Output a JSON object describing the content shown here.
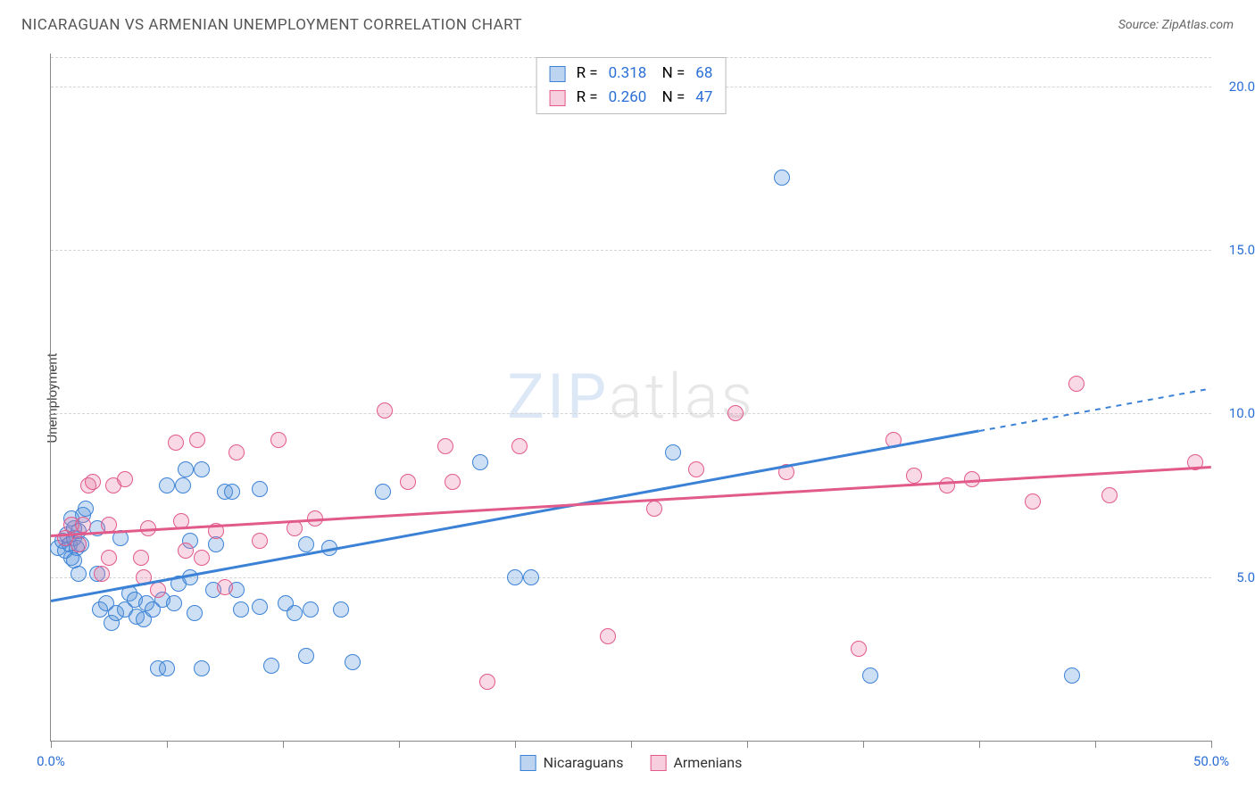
{
  "title": "NICARAGUAN VS ARMENIAN UNEMPLOYMENT CORRELATION CHART",
  "source_label": "Source: ZipAtlas.com",
  "watermark": {
    "part1": "ZIP",
    "part2": "atlas"
  },
  "ylabel": "Unemployment",
  "chart": {
    "type": "scatter",
    "xlim": [
      0,
      50
    ],
    "ylim": [
      0,
      21
    ],
    "x_axis_color": "#888888",
    "y_axis_color": "#888888",
    "background_color": "#ffffff",
    "grid_color": "#d5d5d5",
    "grid_dashed": true,
    "yticks": [
      {
        "v": 5.0,
        "label": "5.0%",
        "color": "#2a6fd6"
      },
      {
        "v": 10.0,
        "label": "10.0%",
        "color": "#2a6fd6"
      },
      {
        "v": 15.0,
        "label": "15.0%",
        "color": "#2a6fd6"
      },
      {
        "v": 20.0,
        "label": "20.0%",
        "color": "#2a6fd6"
      }
    ],
    "xticks": [
      0,
      5,
      10,
      15,
      20,
      25,
      30,
      35,
      40,
      45,
      50
    ],
    "xtick_labels": [
      {
        "v": 0,
        "label": "0.0%",
        "color": "#2a6fd6"
      },
      {
        "v": 50,
        "label": "50.0%",
        "color": "#2a6fd6"
      }
    ],
    "marker_radius": 9,
    "marker_border_width": 1.4,
    "marker_fill_opacity": 0.3,
    "series": [
      {
        "key": "nicaraguans",
        "name": "Nicaraguans",
        "color": "#3b82d6",
        "fill": "rgba(90,150,220,0.30)",
        "border": "#3b82d6",
        "swatch_fill": "#bcd4f0",
        "swatch_border": "#3b82d6",
        "r": "0.318",
        "n": "68",
        "trend": {
          "x0": 0,
          "y0": 4.3,
          "x1_solid": 40,
          "y1_solid": 9.5,
          "x1": 50,
          "y1": 10.8,
          "width": 2.5
        },
        "points": [
          [
            0.3,
            5.9
          ],
          [
            0.5,
            6.1
          ],
          [
            0.6,
            5.8
          ],
          [
            0.7,
            6.3
          ],
          [
            0.8,
            6.0
          ],
          [
            0.9,
            5.6
          ],
          [
            1.0,
            6.2
          ],
          [
            1.1,
            5.9
          ],
          [
            1.2,
            6.4
          ],
          [
            1.0,
            5.5
          ],
          [
            1.3,
            6.0
          ],
          [
            1.4,
            6.9
          ],
          [
            1.5,
            7.1
          ],
          [
            1.0,
            6.5
          ],
          [
            0.9,
            6.8
          ],
          [
            1.2,
            5.1
          ],
          [
            2.0,
            6.5
          ],
          [
            2.0,
            5.1
          ],
          [
            2.1,
            4.0
          ],
          [
            2.4,
            4.2
          ],
          [
            2.6,
            3.6
          ],
          [
            2.8,
            3.9
          ],
          [
            3.2,
            4.0
          ],
          [
            3.0,
            6.2
          ],
          [
            3.4,
            4.5
          ],
          [
            3.7,
            3.8
          ],
          [
            3.6,
            4.3
          ],
          [
            4.0,
            3.7
          ],
          [
            4.1,
            4.2
          ],
          [
            4.6,
            2.2
          ],
          [
            4.8,
            4.3
          ],
          [
            4.4,
            4.0
          ],
          [
            5.0,
            2.2
          ],
          [
            5.0,
            7.8
          ],
          [
            5.3,
            4.2
          ],
          [
            5.5,
            4.8
          ],
          [
            5.7,
            7.8
          ],
          [
            5.8,
            8.3
          ],
          [
            6.0,
            5.0
          ],
          [
            6.0,
            6.1
          ],
          [
            6.2,
            3.9
          ],
          [
            6.5,
            2.2
          ],
          [
            6.5,
            8.3
          ],
          [
            7.0,
            4.6
          ],
          [
            7.1,
            6.0
          ],
          [
            7.5,
            7.6
          ],
          [
            7.8,
            7.6
          ],
          [
            8.0,
            4.6
          ],
          [
            8.2,
            4.0
          ],
          [
            9.0,
            4.1
          ],
          [
            9.0,
            7.7
          ],
          [
            9.5,
            2.3
          ],
          [
            10.1,
            4.2
          ],
          [
            10.5,
            3.9
          ],
          [
            11.0,
            6.0
          ],
          [
            11.2,
            4.0
          ],
          [
            11.0,
            2.6
          ],
          [
            12.0,
            5.9
          ],
          [
            12.5,
            4.0
          ],
          [
            13.0,
            2.4
          ],
          [
            14.3,
            7.6
          ],
          [
            18.5,
            8.5
          ],
          [
            20.0,
            5.0
          ],
          [
            20.7,
            5.0
          ],
          [
            26.8,
            8.8
          ],
          [
            31.5,
            17.2
          ],
          [
            35.3,
            2.0
          ],
          [
            44.0,
            2.0
          ]
        ]
      },
      {
        "key": "armenians",
        "name": "Armenians",
        "color": "#e15a8a",
        "fill": "rgba(230,120,160,0.28)",
        "border": "#e15a8a",
        "swatch_fill": "#f6cedd",
        "swatch_border": "#e15a8a",
        "r": "0.260",
        "n": "47",
        "trend": {
          "x0": 0,
          "y0": 6.3,
          "x1_solid": 50,
          "y1_solid": 8.4,
          "x1": 50,
          "y1": 8.4,
          "width": 2.5
        },
        "points": [
          [
            0.6,
            6.2
          ],
          [
            0.9,
            6.6
          ],
          [
            1.2,
            6.0
          ],
          [
            1.4,
            6.6
          ],
          [
            1.6,
            7.8
          ],
          [
            1.8,
            7.9
          ],
          [
            2.2,
            5.1
          ],
          [
            2.5,
            6.6
          ],
          [
            2.7,
            7.8
          ],
          [
            2.5,
            5.6
          ],
          [
            3.2,
            8.0
          ],
          [
            3.9,
            5.6
          ],
          [
            4.2,
            6.5
          ],
          [
            4.0,
            5.0
          ],
          [
            4.6,
            4.6
          ],
          [
            5.4,
            9.1
          ],
          [
            5.6,
            6.7
          ],
          [
            5.8,
            5.8
          ],
          [
            6.3,
            9.2
          ],
          [
            6.5,
            5.6
          ],
          [
            7.1,
            6.4
          ],
          [
            7.5,
            4.7
          ],
          [
            8.0,
            8.8
          ],
          [
            9.0,
            6.1
          ],
          [
            9.8,
            9.2
          ],
          [
            10.5,
            6.5
          ],
          [
            11.4,
            6.8
          ],
          [
            14.4,
            10.1
          ],
          [
            15.4,
            7.9
          ],
          [
            17.0,
            9.0
          ],
          [
            17.3,
            7.9
          ],
          [
            18.8,
            1.8
          ],
          [
            20.2,
            9.0
          ],
          [
            24.0,
            3.2
          ],
          [
            26.0,
            7.1
          ],
          [
            27.8,
            8.3
          ],
          [
            29.5,
            10.0
          ],
          [
            31.7,
            8.2
          ],
          [
            34.8,
            2.8
          ],
          [
            36.3,
            9.2
          ],
          [
            37.2,
            8.1
          ],
          [
            38.6,
            7.8
          ],
          [
            39.7,
            8.0
          ],
          [
            42.3,
            7.3
          ],
          [
            44.2,
            10.9
          ],
          [
            45.6,
            7.5
          ],
          [
            49.3,
            8.5
          ]
        ]
      }
    ]
  },
  "stats_box": {
    "label_R": "R =",
    "label_N": "N =",
    "border_color": "#bbbbbb"
  },
  "bottom_legend": {
    "items": [
      "nicaraguans",
      "armenians"
    ]
  },
  "fontsize": {
    "title": 17,
    "axis_label": 15,
    "tick": 15,
    "stats": 17,
    "legend": 16
  }
}
